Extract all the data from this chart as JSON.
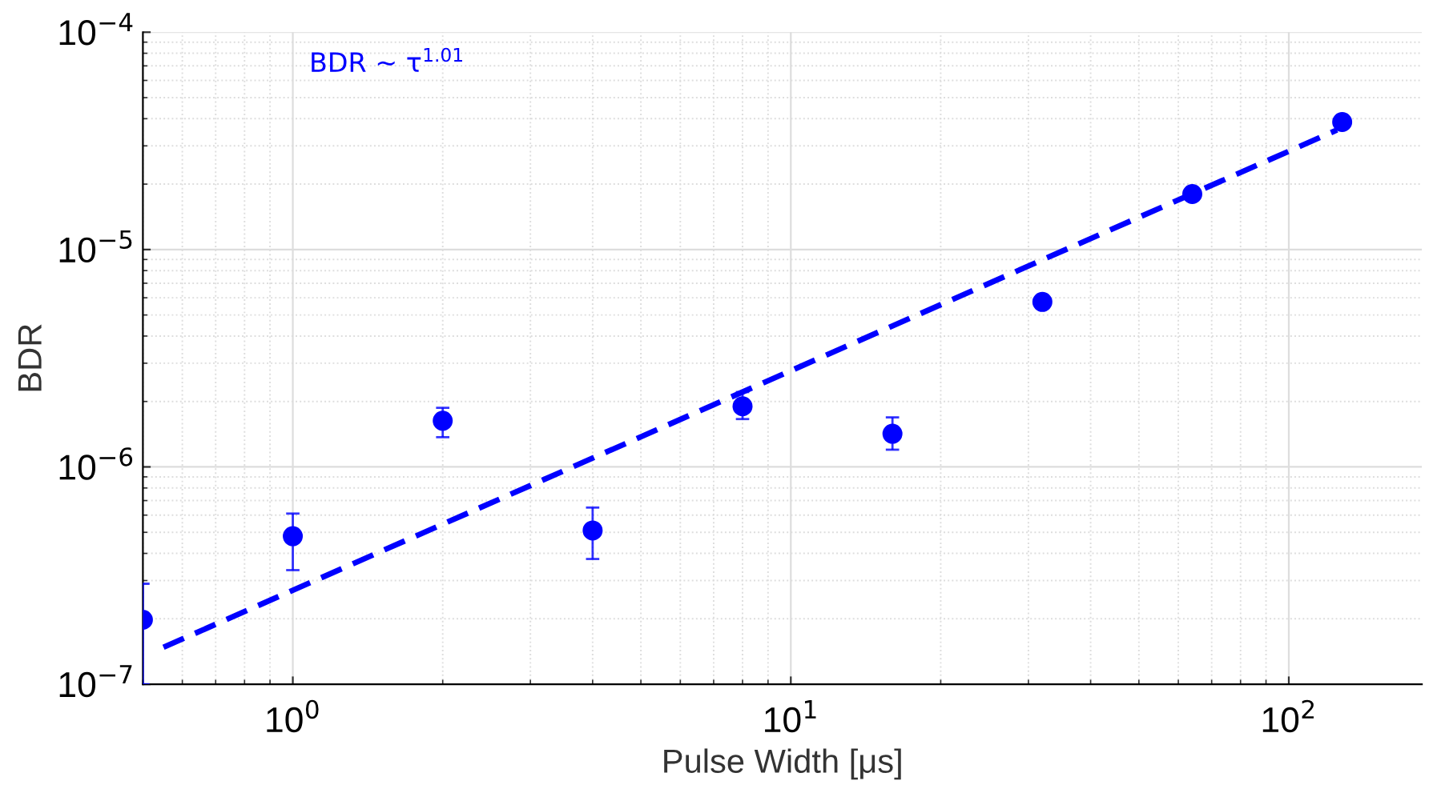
{
  "chart_data": {
    "type": "scatter",
    "xlabel": "Pulse Width [μs]",
    "ylabel": "BDR",
    "log": "xy",
    "grid": true,
    "marker": "circle",
    "xlim": [
      0.5,
      185
    ],
    "ylim": [
      1e-07,
      0.0001
    ],
    "xticks": [
      {
        "value": 1,
        "label": "10$^{0}$"
      },
      {
        "value": 10,
        "label": "10$^{1}$"
      },
      {
        "value": 100,
        "label": "10$^{2}$"
      }
    ],
    "yticks": [
      {
        "value": 1e-07,
        "label": "10$^{−7}$"
      },
      {
        "value": 1e-06,
        "label": "10$^{−6}$"
      },
      {
        "value": 1e-05,
        "label": "10$^{−5}$"
      },
      {
        "value": 0.0001,
        "label": "10$^{−4}$"
      }
    ],
    "annotations": [
      "BDR ∼ τ$^{1.01}$"
    ],
    "series": [
      {
        "color": "#0000ff",
        "x": [
          0.5,
          1,
          2,
          4,
          8,
          16,
          32,
          64,
          128
        ],
        "values": [
          1.98e-07,
          4.8e-07,
          1.63e-06,
          5.1e-07,
          1.9e-06,
          1.42e-06,
          5.74e-06,
          1.8e-05,
          3.86e-05
        ],
        "errors": [
          [
            1e-07,
            2.9e-07
          ],
          [
            3.35e-07,
            6.1e-07
          ],
          [
            1.37e-06,
            1.87e-06
          ],
          [
            3.77e-07,
            6.5e-07
          ],
          [
            1.66e-06,
            2.21e-06
          ],
          [
            1.2e-06,
            1.69e-06
          ],
          null,
          null,
          null
        ]
      },
      {
        "type": "line",
        "color": "#0000ff",
        "line_style": "dashed",
        "marker": "none",
        "x": [
          0.55,
          125
        ],
        "values": [
          1.48e-07,
          3.55e-05
        ]
      }
    ]
  }
}
